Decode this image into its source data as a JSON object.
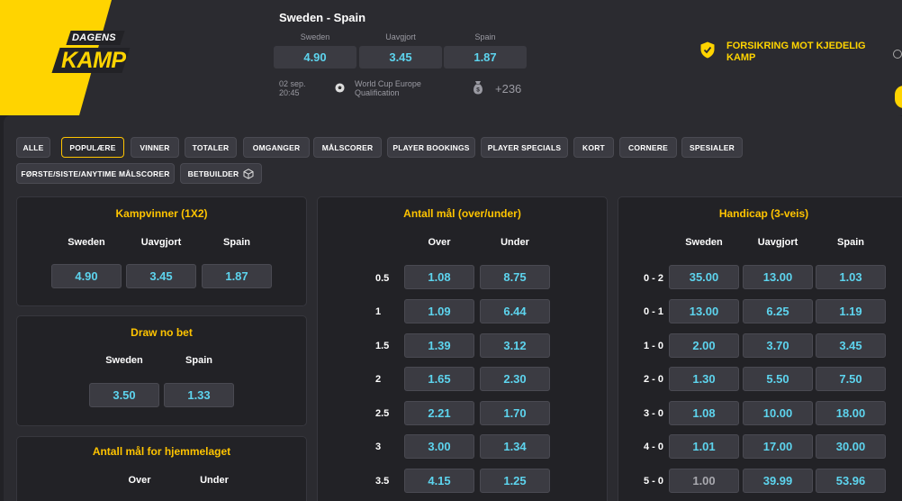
{
  "header": {
    "logo_top": "DAGENS",
    "logo_main": "KAMP",
    "match_title": "Sweden - Spain",
    "outcomes": [
      {
        "label": "Sweden",
        "odd": "4.90"
      },
      {
        "label": "Uavgjort",
        "odd": "3.45"
      },
      {
        "label": "Spain",
        "odd": "1.87"
      }
    ],
    "date": "02 sep.",
    "time": "20:45",
    "competition": "World Cup Europe Qualification",
    "more_markets": "+236",
    "insurance_text": "FORSIKRING MOT KJEDELIG KAMP"
  },
  "filters": [
    {
      "label": "ALLE",
      "active": false
    },
    {
      "label": "POPULÆRE",
      "active": true
    },
    {
      "label": "VINNER",
      "active": false
    },
    {
      "label": "TOTALER",
      "active": false
    },
    {
      "label": "OMGANGER",
      "active": false
    },
    {
      "label": "MÅLSCORER",
      "active": false
    },
    {
      "label": "PLAYER BOOKINGS",
      "active": false
    },
    {
      "label": "PLAYER SPECIALS",
      "active": false
    },
    {
      "label": "KORT",
      "active": false
    },
    {
      "label": "CORNERE",
      "active": false
    },
    {
      "label": "SPESIALER",
      "active": false
    },
    {
      "label": "FØRSTE/SISTE/ANYTIME MÅLSCORER",
      "active": false
    },
    {
      "label": "BETBUILDER",
      "active": false
    }
  ],
  "kampvinner": {
    "title": "Kampvinner (1X2)",
    "columns": [
      "Sweden",
      "Uavgjort",
      "Spain"
    ],
    "odds": [
      "4.90",
      "3.45",
      "1.87"
    ]
  },
  "draw_no_bet": {
    "title": "Draw no bet",
    "columns": [
      "Sweden",
      "Spain"
    ],
    "odds": [
      "3.50",
      "1.33"
    ]
  },
  "home_goals": {
    "title": "Antall mål for hjemmelaget",
    "columns": [
      "Over",
      "Under"
    ]
  },
  "total_goals": {
    "title": "Antall mål (over/under)",
    "columns": [
      "Over",
      "Under"
    ],
    "rows": [
      {
        "line": "0.5",
        "over": "1.08",
        "under": "8.75"
      },
      {
        "line": "1",
        "over": "1.09",
        "under": "6.44"
      },
      {
        "line": "1.5",
        "over": "1.39",
        "under": "3.12"
      },
      {
        "line": "2",
        "over": "1.65",
        "under": "2.30"
      },
      {
        "line": "2.5",
        "over": "2.21",
        "under": "1.70"
      },
      {
        "line": "3",
        "over": "3.00",
        "under": "1.34"
      },
      {
        "line": "3.5",
        "over": "4.15",
        "under": "1.25"
      }
    ]
  },
  "handicap": {
    "title": "Handicap (3-veis)",
    "columns": [
      "Sweden",
      "Uavgjort",
      "Spain"
    ],
    "rows": [
      {
        "line": "0 - 2",
        "odds": [
          "35.00",
          "13.00",
          "1.03"
        ]
      },
      {
        "line": "0 - 1",
        "odds": [
          "13.00",
          "6.25",
          "1.19"
        ]
      },
      {
        "line": "1 - 0",
        "odds": [
          "2.00",
          "3.70",
          "3.45"
        ]
      },
      {
        "line": "2 - 0",
        "odds": [
          "1.30",
          "5.50",
          "7.50"
        ]
      },
      {
        "line": "3 - 0",
        "odds": [
          "1.08",
          "10.00",
          "18.00"
        ]
      },
      {
        "line": "4 - 0",
        "odds": [
          "1.01",
          "17.00",
          "30.00"
        ]
      },
      {
        "line": "5 - 0",
        "odds": [
          "1.00",
          "39.99",
          "53.96"
        ]
      }
    ]
  },
  "colors": {
    "accent_yellow": "#ffc400",
    "odds_cyan": "#5dd4ee",
    "background": "#222226"
  }
}
